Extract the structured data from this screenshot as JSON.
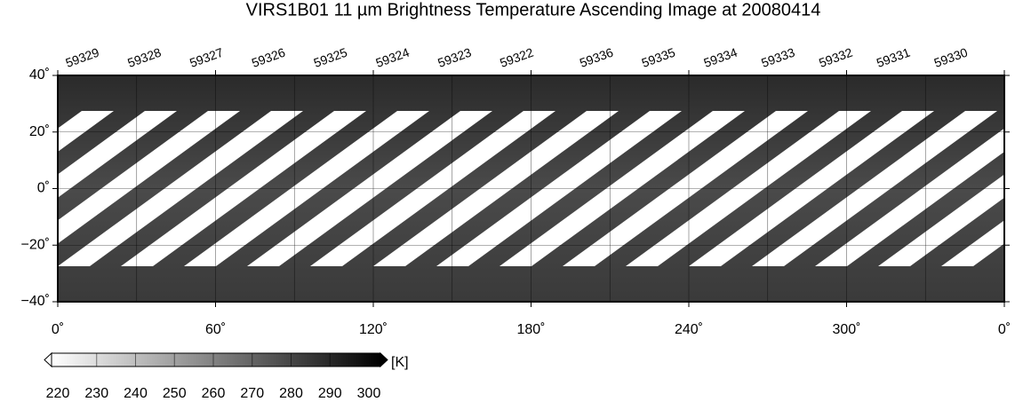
{
  "title": "VIRS1B01 11 µm Brightness Temperature Ascending Image at 20080414",
  "orbits": [
    "59329",
    "59328",
    "59327",
    "59326",
    "59325",
    "59324",
    "59323",
    "59322",
    "59336",
    "59335",
    "59334",
    "59333",
    "59332",
    "59331",
    "59330"
  ],
  "latitude_labels": [
    "40˚",
    "20˚",
    "0˚",
    "−20˚",
    "−40˚"
  ],
  "longitude_labels": [
    "0˚",
    "60˚",
    "120˚",
    "180˚",
    "240˚",
    "300˚",
    "0˚"
  ],
  "colorbar": {
    "labels": [
      220,
      230,
      240,
      250,
      260,
      270,
      280,
      290,
      300
    ],
    "unit": "[K]"
  }
}
